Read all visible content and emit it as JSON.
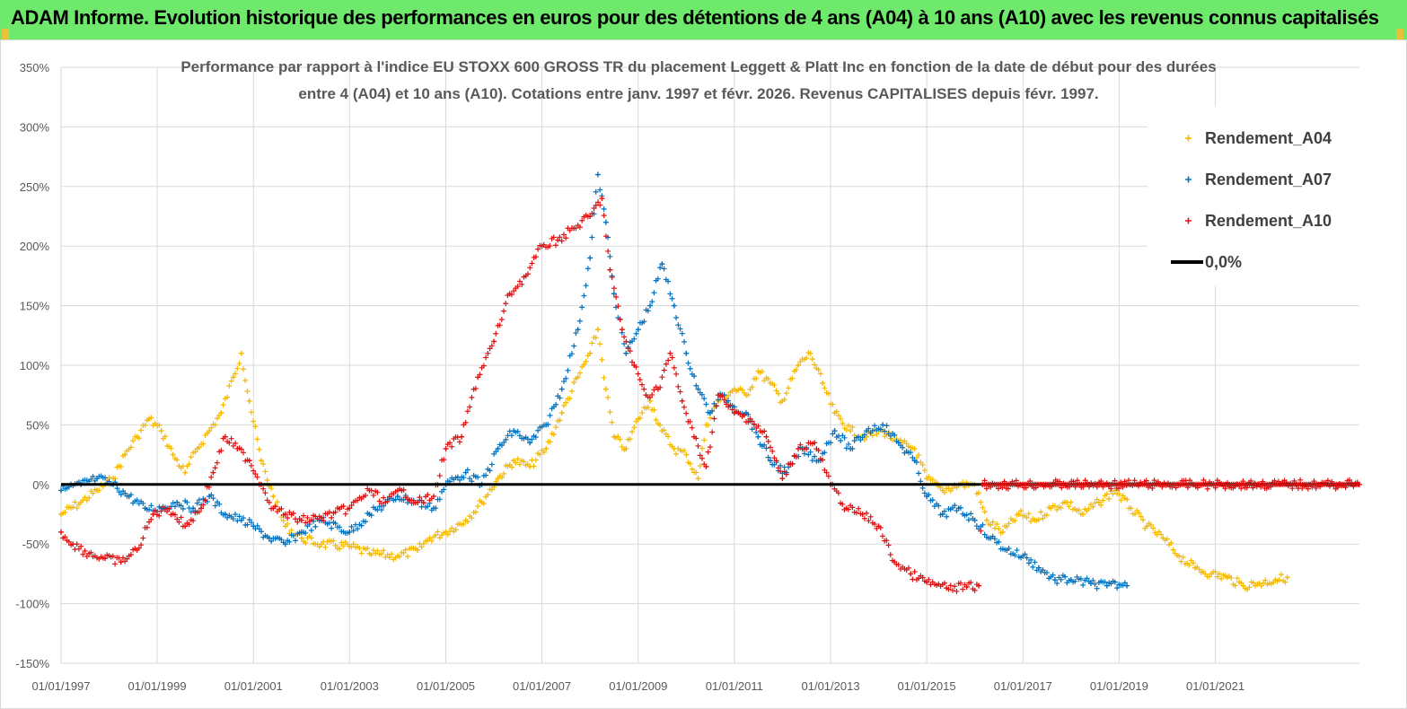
{
  "banner": {
    "title": "ADAM Informe. Evolution historique des performances en euros pour des détentions de 4 ans (A04) à 10 ans (A10) avec les revenus connus capitalisés",
    "background": "#6fe96c"
  },
  "chart_data": {
    "type": "scatter",
    "title_line1": "Performance par rapport à l'indice EU STOXX 600 GROSS TR  du placement Leggett  & Platt Inc en fonction de la date de début pour des durées",
    "title_line2": "entre 4 (A04) et 10 ans (A10). Cotations entre janv. 1997 et févr. 2026. Revenus CAPITALISES depuis févr. 1997.",
    "ylim": [
      -150,
      350
    ],
    "y_ticks": [
      "350%",
      "300%",
      "250%",
      "200%",
      "150%",
      "100%",
      "50%",
      "0%",
      "-50%",
      "-100%",
      "-150%"
    ],
    "x_range": [
      "1997-01-01",
      "2023-12-31"
    ],
    "x_ticks": [
      "01/01/1997",
      "01/01/1999",
      "01/01/2001",
      "01/01/2003",
      "01/01/2005",
      "01/01/2007",
      "01/01/2009",
      "01/01/2011",
      "01/01/2013",
      "01/01/2015",
      "01/01/2017",
      "01/01/2019",
      "01/01/2021"
    ],
    "legend_position": "top-right",
    "series": [
      {
        "name": "Rendement_A04",
        "color": "#f5b800",
        "points": [
          [
            "1997-01-01",
            -25
          ],
          [
            "1997-06-01",
            -15
          ],
          [
            "1997-10-01",
            -5
          ],
          [
            "1998-02-01",
            5
          ],
          [
            "1998-05-01",
            25
          ],
          [
            "1998-08-01",
            40
          ],
          [
            "1998-11-01",
            55
          ],
          [
            "1999-02-01",
            45
          ],
          [
            "1999-05-01",
            25
          ],
          [
            "1999-08-01",
            10
          ],
          [
            "1999-11-01",
            30
          ],
          [
            "2000-02-01",
            45
          ],
          [
            "2000-05-01",
            60
          ],
          [
            "2000-08-01",
            90
          ],
          [
            "2000-10-01",
            110
          ],
          [
            "2000-12-01",
            70
          ],
          [
            "2001-03-01",
            20
          ],
          [
            "2001-06-01",
            -10
          ],
          [
            "2001-09-01",
            -35
          ],
          [
            "2002-01-01",
            -45
          ],
          [
            "2002-06-01",
            -50
          ],
          [
            "2003-01-01",
            -52
          ],
          [
            "2003-06-01",
            -58
          ],
          [
            "2004-01-01",
            -60
          ],
          [
            "2004-06-01",
            -55
          ],
          [
            "2004-09-01",
            -45
          ],
          [
            "2005-01-01",
            -40
          ],
          [
            "2005-06-01",
            -30
          ],
          [
            "2005-10-01",
            -15
          ],
          [
            "2006-02-01",
            5
          ],
          [
            "2006-06-01",
            20
          ],
          [
            "2006-10-01",
            15
          ],
          [
            "2007-02-01",
            30
          ],
          [
            "2007-06-01",
            60
          ],
          [
            "2007-10-01",
            90
          ],
          [
            "2008-01-01",
            110
          ],
          [
            "2008-03-01",
            130
          ],
          [
            "2008-05-01",
            80
          ],
          [
            "2008-07-01",
            40
          ],
          [
            "2008-10-01",
            30
          ],
          [
            "2009-01-01",
            55
          ],
          [
            "2009-04-01",
            70
          ],
          [
            "2009-07-01",
            45
          ],
          [
            "2009-10-01",
            30
          ],
          [
            "2010-01-01",
            25
          ],
          [
            "2010-04-01",
            5
          ],
          [
            "2010-06-01",
            50
          ],
          [
            "2010-09-01",
            70
          ],
          [
            "2011-01-01",
            80
          ],
          [
            "2011-04-01",
            75
          ],
          [
            "2011-07-01",
            95
          ],
          [
            "2011-10-01",
            85
          ],
          [
            "2012-01-01",
            70
          ],
          [
            "2012-05-01",
            100
          ],
          [
            "2012-08-01",
            110
          ],
          [
            "2012-11-01",
            85
          ],
          [
            "2013-02-01",
            60
          ],
          [
            "2013-06-01",
            45
          ],
          [
            "2013-10-01",
            40
          ],
          [
            "2014-02-01",
            45
          ],
          [
            "2014-06-01",
            35
          ],
          [
            "2014-10-01",
            30
          ],
          [
            "2015-01-01",
            5
          ],
          [
            "2015-05-01",
            -5
          ],
          [
            "2015-09-01",
            0
          ],
          [
            "2016-01-01",
            0
          ],
          [
            "2016-04-01",
            -30
          ],
          [
            "2016-08-01",
            -40
          ],
          [
            "2016-12-01",
            -25
          ],
          [
            "2017-04-01",
            -30
          ],
          [
            "2017-08-01",
            -20
          ],
          [
            "2017-12-01",
            -15
          ],
          [
            "2018-04-01",
            -25
          ],
          [
            "2018-08-01",
            -15
          ],
          [
            "2018-12-01",
            -5
          ],
          [
            "2019-04-01",
            -20
          ],
          [
            "2019-08-01",
            -35
          ],
          [
            "2019-12-01",
            -45
          ],
          [
            "2020-04-01",
            -60
          ],
          [
            "2020-08-01",
            -70
          ],
          [
            "2020-12-01",
            -75
          ],
          [
            "2021-04-01",
            -78
          ],
          [
            "2021-08-01",
            -85
          ],
          [
            "2021-12-01",
            -83
          ],
          [
            "2022-04-01",
            -80
          ],
          [
            "2022-07-01",
            -78
          ]
        ]
      },
      {
        "name": "Rendement_A07",
        "color": "#0070c0",
        "points": [
          [
            "1997-01-01",
            -5
          ],
          [
            "1997-06-01",
            0
          ],
          [
            "1997-10-01",
            5
          ],
          [
            "1998-02-01",
            0
          ],
          [
            "1998-06-01",
            -10
          ],
          [
            "1998-10-01",
            -20
          ],
          [
            "1999-02-01",
            -20
          ],
          [
            "1999-06-01",
            -15
          ],
          [
            "1999-10-01",
            -20
          ],
          [
            "2000-02-01",
            -10
          ],
          [
            "2000-06-01",
            -25
          ],
          [
            "2000-10-01",
            -30
          ],
          [
            "2001-01-01",
            -35
          ],
          [
            "2001-05-01",
            -45
          ],
          [
            "2001-09-01",
            -50
          ],
          [
            "2002-01-01",
            -40
          ],
          [
            "2002-06-01",
            -30
          ],
          [
            "2003-01-01",
            -40
          ],
          [
            "2003-06-01",
            -25
          ],
          [
            "2004-01-01",
            -10
          ],
          [
            "2004-06-01",
            -15
          ],
          [
            "2004-10-01",
            -20
          ],
          [
            "2005-01-01",
            0
          ],
          [
            "2005-06-01",
            10
          ],
          [
            "2005-10-01",
            0
          ],
          [
            "2006-02-01",
            30
          ],
          [
            "2006-06-01",
            45
          ],
          [
            "2006-10-01",
            35
          ],
          [
            "2007-02-01",
            50
          ],
          [
            "2007-06-01",
            80
          ],
          [
            "2007-10-01",
            130
          ],
          [
            "2008-01-01",
            190
          ],
          [
            "2008-03-01",
            260
          ],
          [
            "2008-05-01",
            220
          ],
          [
            "2008-07-01",
            160
          ],
          [
            "2008-10-01",
            110
          ],
          [
            "2009-01-01",
            130
          ],
          [
            "2009-04-01",
            150
          ],
          [
            "2009-07-01",
            185
          ],
          [
            "2009-10-01",
            150
          ],
          [
            "2010-01-01",
            110
          ],
          [
            "2010-04-01",
            80
          ],
          [
            "2010-07-01",
            60
          ],
          [
            "2010-10-01",
            75
          ],
          [
            "2011-01-01",
            65
          ],
          [
            "2011-04-01",
            60
          ],
          [
            "2011-07-01",
            40
          ],
          [
            "2011-10-01",
            20
          ],
          [
            "2012-02-01",
            10
          ],
          [
            "2012-06-01",
            30
          ],
          [
            "2012-10-01",
            20
          ],
          [
            "2013-02-01",
            45
          ],
          [
            "2013-06-01",
            30
          ],
          [
            "2013-10-01",
            45
          ],
          [
            "2014-02-01",
            50
          ],
          [
            "2014-06-01",
            35
          ],
          [
            "2014-10-01",
            20
          ],
          [
            "2015-01-01",
            -10
          ],
          [
            "2015-05-01",
            -25
          ],
          [
            "2015-09-01",
            -20
          ],
          [
            "2016-01-01",
            -30
          ],
          [
            "2016-05-01",
            -45
          ],
          [
            "2016-09-01",
            -55
          ],
          [
            "2017-01-01",
            -60
          ],
          [
            "2017-05-01",
            -70
          ],
          [
            "2017-09-01",
            -80
          ],
          [
            "2018-01-01",
            -80
          ],
          [
            "2018-06-01",
            -83
          ],
          [
            "2018-10-01",
            -85
          ],
          [
            "2019-01-01",
            -84
          ],
          [
            "2019-03-01",
            -85
          ]
        ]
      },
      {
        "name": "Rendement_A10",
        "color": "#e01010",
        "points": [
          [
            "1997-01-01",
            -40
          ],
          [
            "1997-04-01",
            -50
          ],
          [
            "1997-08-01",
            -58
          ],
          [
            "1997-12-01",
            -62
          ],
          [
            "1998-04-01",
            -65
          ],
          [
            "1998-08-01",
            -55
          ],
          [
            "1998-12-01",
            -25
          ],
          [
            "1999-04-01",
            -20
          ],
          [
            "1999-08-01",
            -35
          ],
          [
            "1999-12-01",
            -20
          ],
          [
            "2000-03-01",
            10
          ],
          [
            "2000-06-01",
            40
          ],
          [
            "2000-09-01",
            30
          ],
          [
            "2000-12-01",
            20
          ],
          [
            "2001-03-01",
            0
          ],
          [
            "2001-06-01",
            -20
          ],
          [
            "2001-09-01",
            -25
          ],
          [
            "2002-01-01",
            -30
          ],
          [
            "2002-06-01",
            -28
          ],
          [
            "2003-01-01",
            -20
          ],
          [
            "2003-06-01",
            -5
          ],
          [
            "2003-10-01",
            -15
          ],
          [
            "2004-02-01",
            -5
          ],
          [
            "2004-06-01",
            -15
          ],
          [
            "2004-10-01",
            -10
          ],
          [
            "2005-01-01",
            30
          ],
          [
            "2005-05-01",
            40
          ],
          [
            "2005-09-01",
            90
          ],
          [
            "2006-01-01",
            120
          ],
          [
            "2006-05-01",
            160
          ],
          [
            "2006-09-01",
            175
          ],
          [
            "2007-01-01",
            200
          ],
          [
            "2007-05-01",
            205
          ],
          [
            "2007-09-01",
            215
          ],
          [
            "2008-01-01",
            225
          ],
          [
            "2008-04-01",
            240
          ],
          [
            "2008-06-01",
            180
          ],
          [
            "2008-09-01",
            130
          ],
          [
            "2008-12-01",
            100
          ],
          [
            "2009-03-01",
            75
          ],
          [
            "2009-06-01",
            80
          ],
          [
            "2009-09-01",
            110
          ],
          [
            "2009-12-01",
            70
          ],
          [
            "2010-03-01",
            40
          ],
          [
            "2010-06-01",
            15
          ],
          [
            "2010-09-01",
            75
          ],
          [
            "2011-01-01",
            60
          ],
          [
            "2011-05-01",
            55
          ],
          [
            "2011-09-01",
            40
          ],
          [
            "2012-01-01",
            5
          ],
          [
            "2012-05-01",
            30
          ],
          [
            "2012-09-01",
            35
          ],
          [
            "2013-01-01",
            0
          ],
          [
            "2013-05-01",
            -20
          ],
          [
            "2013-09-01",
            -25
          ],
          [
            "2014-01-01",
            -35
          ],
          [
            "2014-05-01",
            -65
          ],
          [
            "2014-09-01",
            -75
          ],
          [
            "2015-01-01",
            -82
          ],
          [
            "2015-06-01",
            -87
          ],
          [
            "2015-11-01",
            -86
          ],
          [
            "2016-02-01",
            -85
          ],
          [
            "2016-03-01",
            0
          ],
          [
            "2023-12-31",
            0
          ]
        ]
      }
    ],
    "reference_line": {
      "name": "0,0%",
      "value": 0,
      "color": "#000000"
    }
  }
}
